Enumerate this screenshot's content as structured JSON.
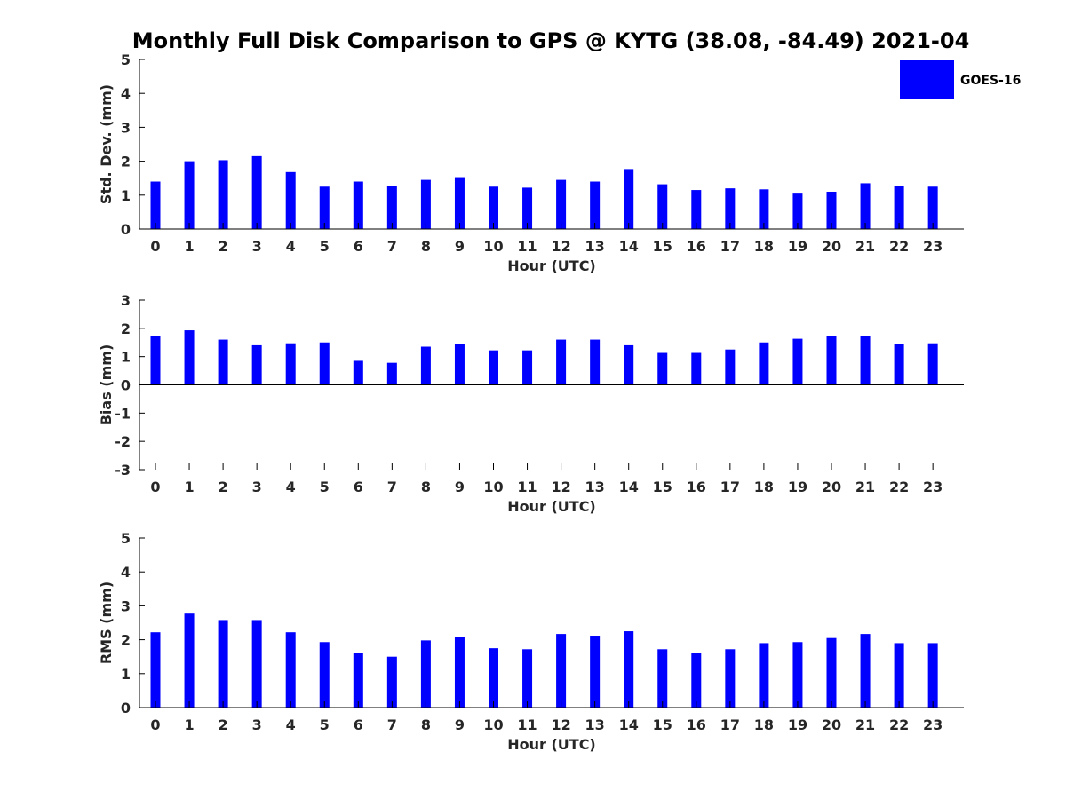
{
  "title": "Monthly Full Disk Comparison to GPS @ KYTG (38.08, -84.49) 2021-04",
  "series_color": "#0000ff",
  "legend": {
    "label": "GOES-16",
    "placement": "top-right"
  },
  "chart_data": [
    {
      "type": "bar",
      "xlabel": "Hour (UTC)",
      "ylabel": "Std. Dev. (mm)",
      "ylim": [
        0,
        5
      ],
      "yticks": [
        0,
        1,
        2,
        3,
        4,
        5
      ],
      "categories": [
        "0",
        "1",
        "2",
        "3",
        "4",
        "5",
        "6",
        "7",
        "8",
        "9",
        "10",
        "11",
        "12",
        "13",
        "14",
        "15",
        "16",
        "17",
        "18",
        "19",
        "20",
        "21",
        "22",
        "23"
      ],
      "series": [
        {
          "name": "GOES-16",
          "values": [
            1.4,
            2.0,
            2.03,
            2.15,
            1.68,
            1.25,
            1.4,
            1.28,
            1.45,
            1.53,
            1.25,
            1.22,
            1.45,
            1.4,
            1.77,
            1.32,
            1.15,
            1.2,
            1.17,
            1.07,
            1.1,
            1.35,
            1.27,
            1.25
          ]
        }
      ],
      "grid": false
    },
    {
      "type": "bar",
      "xlabel": "Hour (UTC)",
      "ylabel": "Bias (mm)",
      "ylim": [
        -3,
        3
      ],
      "yticks": [
        -3,
        -2,
        -1,
        0,
        1,
        2,
        3
      ],
      "categories": [
        "0",
        "1",
        "2",
        "3",
        "4",
        "5",
        "6",
        "7",
        "8",
        "9",
        "10",
        "11",
        "12",
        "13",
        "14",
        "15",
        "16",
        "17",
        "18",
        "19",
        "20",
        "21",
        "22",
        "23"
      ],
      "series": [
        {
          "name": "GOES-16",
          "values": [
            1.72,
            1.93,
            1.6,
            1.4,
            1.47,
            1.5,
            0.85,
            0.78,
            1.35,
            1.43,
            1.22,
            1.22,
            1.6,
            1.6,
            1.4,
            1.13,
            1.13,
            1.25,
            1.5,
            1.63,
            1.72,
            1.72,
            1.43,
            1.47
          ]
        }
      ],
      "grid": false
    },
    {
      "type": "bar",
      "xlabel": "Hour (UTC)",
      "ylabel": "RMS (mm)",
      "ylim": [
        0,
        5
      ],
      "yticks": [
        0,
        1,
        2,
        3,
        4,
        5
      ],
      "categories": [
        "0",
        "1",
        "2",
        "3",
        "4",
        "5",
        "6",
        "7",
        "8",
        "9",
        "10",
        "11",
        "12",
        "13",
        "14",
        "15",
        "16",
        "17",
        "18",
        "19",
        "20",
        "21",
        "22",
        "23"
      ],
      "series": [
        {
          "name": "GOES-16",
          "values": [
            2.22,
            2.77,
            2.58,
            2.58,
            2.22,
            1.93,
            1.62,
            1.5,
            1.98,
            2.08,
            1.75,
            1.72,
            2.17,
            2.12,
            2.25,
            1.72,
            1.6,
            1.72,
            1.9,
            1.93,
            2.05,
            2.17,
            1.9,
            1.9
          ]
        }
      ],
      "grid": false
    }
  ]
}
